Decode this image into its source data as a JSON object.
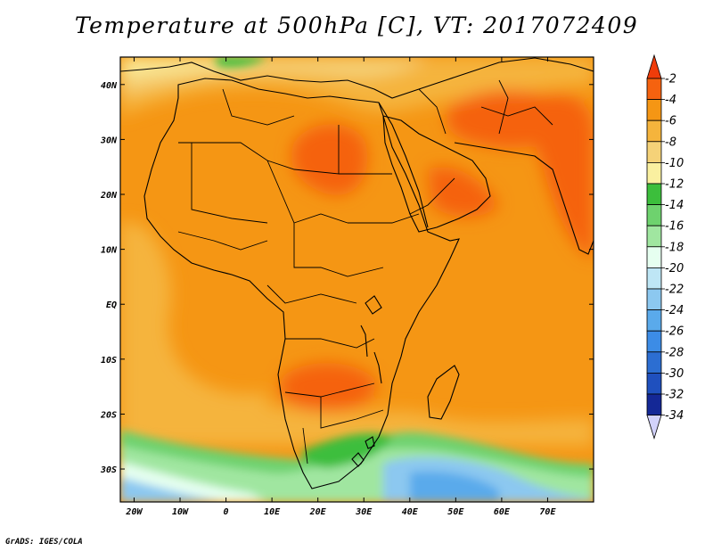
{
  "title": "Temperature at 500hPa [C], VT: 2017072409",
  "credit": "GrADS: IGES/COLA",
  "map": {
    "lon_range": [
      -23,
      80
    ],
    "lat_range": [
      -36,
      45
    ],
    "x_ticks": [
      {
        "lon": -20,
        "label": "20W"
      },
      {
        "lon": -10,
        "label": "10W"
      },
      {
        "lon": 0,
        "label": "0"
      },
      {
        "lon": 10,
        "label": "10E"
      },
      {
        "lon": 20,
        "label": "20E"
      },
      {
        "lon": 30,
        "label": "30E"
      },
      {
        "lon": 40,
        "label": "40E"
      },
      {
        "lon": 50,
        "label": "50E"
      },
      {
        "lon": 60,
        "label": "60E"
      },
      {
        "lon": 70,
        "label": "70E"
      }
    ],
    "y_ticks": [
      {
        "lat": 40,
        "label": "40N"
      },
      {
        "lat": 30,
        "label": "30N"
      },
      {
        "lat": 20,
        "label": "20N"
      },
      {
        "lat": 10,
        "label": "10N"
      },
      {
        "lat": 0,
        "label": "EQ"
      },
      {
        "lat": -10,
        "label": "10S"
      },
      {
        "lat": -20,
        "label": "20S"
      },
      {
        "lat": -30,
        "label": "30S"
      }
    ]
  },
  "colorbar": {
    "labels": [
      "-2",
      "-4",
      "-6",
      "-8",
      "-10",
      "-12",
      "-14",
      "-16",
      "-18",
      "-20",
      "-22",
      "-24",
      "-26",
      "-28",
      "-30",
      "-32",
      "-34"
    ],
    "colors": [
      "#f03c0a",
      "#f5620f",
      "#f59614",
      "#f5b43c",
      "#f5d278",
      "#faf0a0",
      "#3cbe3c",
      "#6ed26e",
      "#a0e6a0",
      "#e6fff0",
      "#bee6f5",
      "#8cc8f0",
      "#5aaaeb",
      "#3c8ce6",
      "#2c6ed2",
      "#1f50be",
      "#142896",
      "#0a0a6e"
    ],
    "over_color": "#f03c0a",
    "under_color": "#d2d2fa"
  }
}
